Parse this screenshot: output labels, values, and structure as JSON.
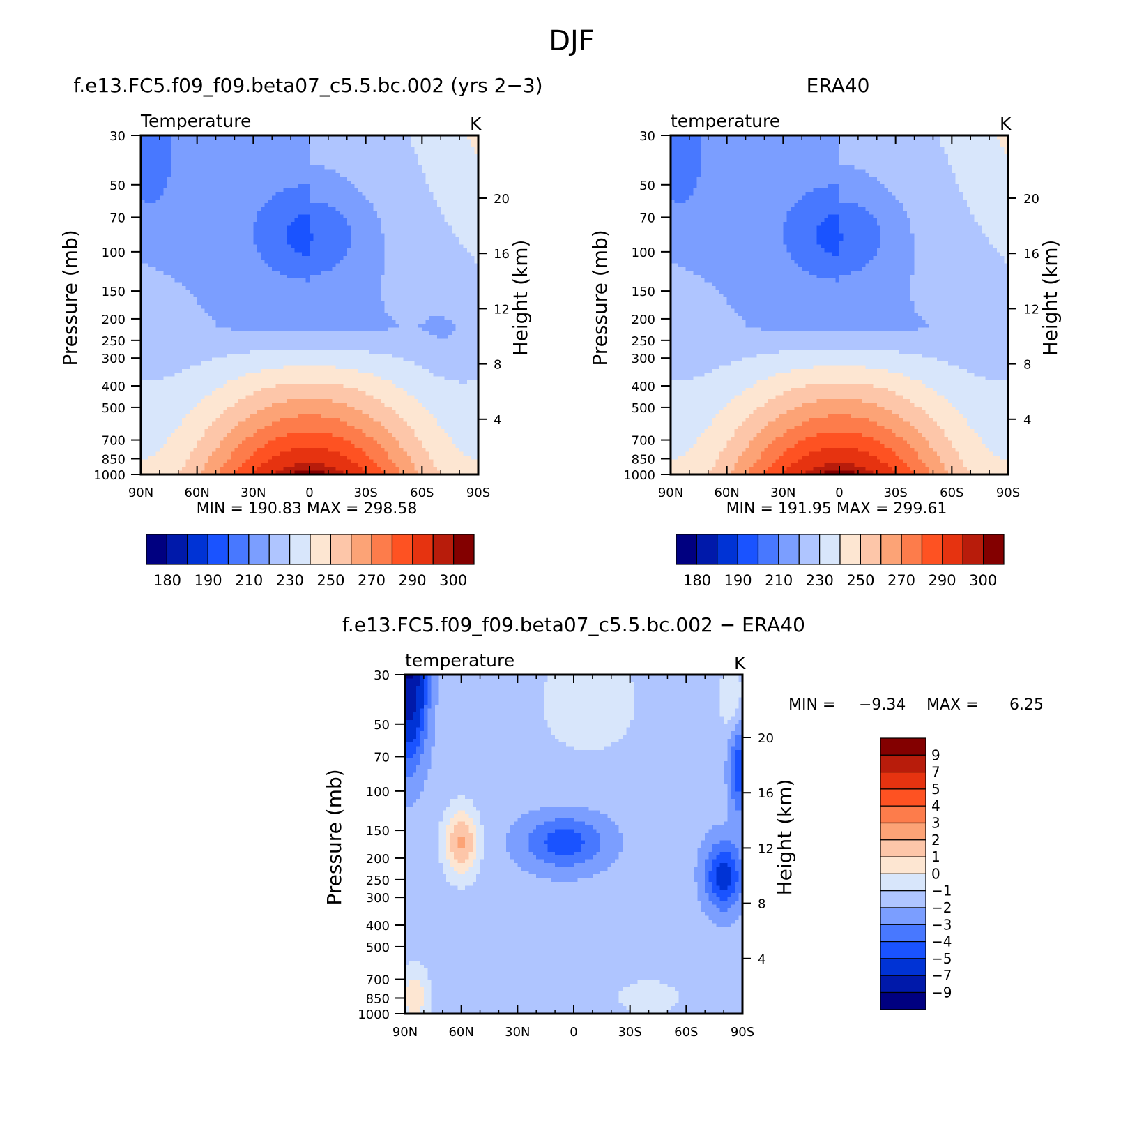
{
  "page_title": "DJF",
  "chart_data": [
    {
      "type": "heatmap",
      "id": "model",
      "title": "f.e13.FC5.f09_f09.beta07_c5.5.bc.002 (yrs 2−3)",
      "variable": "Temperature",
      "units": "K",
      "xlabel": "",
      "ylabel": "Pressure (mb)",
      "y2label": "Height (km)",
      "x_ticks": [
        "90N",
        "60N",
        "30N",
        "0",
        "30S",
        "60S",
        "90S"
      ],
      "y_ticks": [
        "30",
        "50",
        "70",
        "100",
        "150",
        "200",
        "250",
        "300",
        "400",
        "500",
        "700",
        "850",
        "1000"
      ],
      "y2_ticks": [
        "20",
        "16",
        "12",
        "8",
        "4"
      ],
      "min_label": "MIN",
      "min": "190.83",
      "max_label": "MAX",
      "max": "298.58",
      "colorbar_labels": [
        "180",
        "190",
        "210",
        "230",
        "250",
        "270",
        "290",
        "300"
      ],
      "levels": [
        175,
        180,
        185,
        190,
        200,
        210,
        220,
        230,
        240,
        250,
        260,
        270,
        280,
        290,
        295,
        300
      ],
      "colors": [
        "#000080",
        "#0019aa",
        "#0033d5",
        "#1a53ff",
        "#4878ff",
        "#7b9eff",
        "#afc5ff",
        "#d8e6fb",
        "#fde6d2",
        "#fdc6a9",
        "#fca376",
        "#fd7c4b",
        "#fe5222",
        "#e63310",
        "#b81c0b",
        "#830000"
      ]
    },
    {
      "type": "heatmap",
      "id": "obs",
      "title": "ERA40",
      "variable": "temperature",
      "units": "K",
      "xlabel": "",
      "ylabel": "Pressure (mb)",
      "y2label": "Height (km)",
      "x_ticks": [
        "90N",
        "60N",
        "30N",
        "0",
        "30S",
        "60S",
        "90S"
      ],
      "y_ticks": [
        "30",
        "50",
        "70",
        "100",
        "150",
        "200",
        "250",
        "300",
        "400",
        "500",
        "700",
        "850",
        "1000"
      ],
      "y2_ticks": [
        "20",
        "16",
        "12",
        "8",
        "4"
      ],
      "min_label": "MIN",
      "min": "191.95",
      "max_label": "MAX",
      "max": "299.61",
      "colorbar_labels": [
        "180",
        "190",
        "210",
        "230",
        "250",
        "270",
        "290",
        "300"
      ],
      "levels": [
        175,
        180,
        185,
        190,
        200,
        210,
        220,
        230,
        240,
        250,
        260,
        270,
        280,
        290,
        295,
        300
      ],
      "colors": [
        "#000080",
        "#0019aa",
        "#0033d5",
        "#1a53ff",
        "#4878ff",
        "#7b9eff",
        "#afc5ff",
        "#d8e6fb",
        "#fde6d2",
        "#fdc6a9",
        "#fca376",
        "#fd7c4b",
        "#fe5222",
        "#e63310",
        "#b81c0b",
        "#830000"
      ]
    },
    {
      "type": "heatmap",
      "id": "diff",
      "title": "f.e13.FC5.f09_f09.beta07_c5.5.bc.002 − ERA40",
      "variable": "temperature",
      "units": "K",
      "xlabel": "",
      "ylabel": "Pressure (mb)",
      "y2label": "Height (km)",
      "x_ticks": [
        "90N",
        "60N",
        "30N",
        "0",
        "30S",
        "60S",
        "90S"
      ],
      "y_ticks": [
        "30",
        "50",
        "70",
        "100",
        "150",
        "200",
        "250",
        "300",
        "400",
        "500",
        "700",
        "850",
        "1000"
      ],
      "y2_ticks": [
        "20",
        "16",
        "12",
        "8",
        "4"
      ],
      "min_label": "MIN =",
      "min": "−9.34",
      "max_label": "MAX =",
      "max": "6.25",
      "colorbar_labels": [
        "9",
        "7",
        "5",
        "4",
        "3",
        "2",
        "1",
        "0",
        "−1",
        "−2",
        "−3",
        "−4",
        "−5",
        "−7",
        "−9"
      ],
      "levels": [
        -9,
        -7,
        -5,
        -4,
        -3,
        -2,
        -1,
        0,
        1,
        2,
        3,
        4,
        5,
        7,
        9
      ],
      "colors": [
        "#000080",
        "#0019aa",
        "#0033d5",
        "#1a53ff",
        "#4878ff",
        "#7b9eff",
        "#afc5ff",
        "#d8e6fb",
        "#fde6d2",
        "#fdc6a9",
        "#fca376",
        "#fd7c4b",
        "#fe5222",
        "#e63310",
        "#b81c0b",
        "#830000"
      ]
    }
  ]
}
